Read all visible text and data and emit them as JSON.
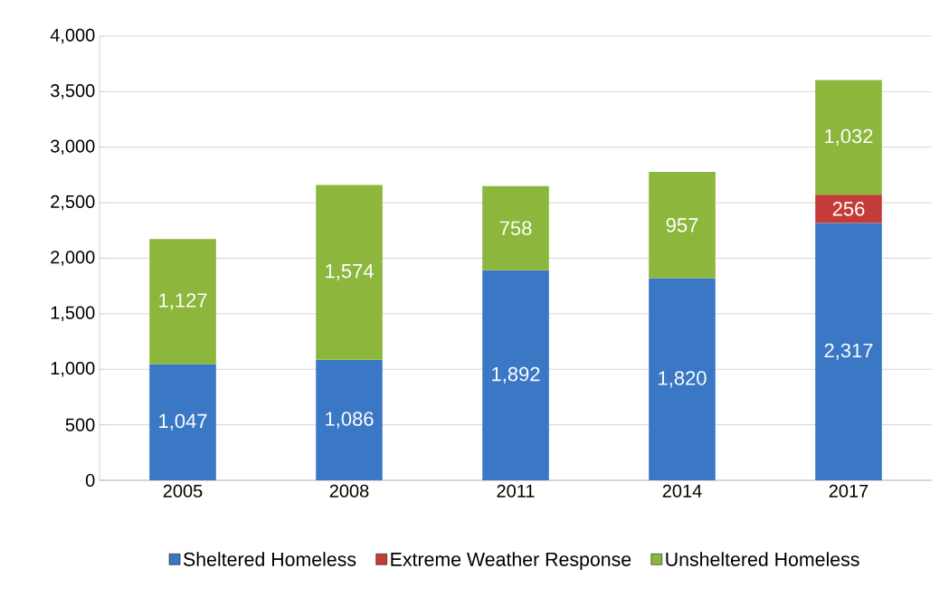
{
  "chart_data": {
    "type": "bar",
    "stacked": true,
    "categories": [
      "2005",
      "2008",
      "2011",
      "2014",
      "2017"
    ],
    "series": [
      {
        "name": "Sheltered Homeless",
        "color": "#3a77c4",
        "values": [
          1047,
          1086,
          1892,
          1820,
          2317
        ],
        "value_labels": [
          "1,047",
          "1,086",
          "1,892",
          "1,820",
          "2,317"
        ]
      },
      {
        "name": "Extreme Weather Response",
        "color": "#c43c38",
        "values": [
          null,
          null,
          null,
          null,
          256
        ],
        "value_labels": [
          null,
          null,
          null,
          null,
          "256"
        ]
      },
      {
        "name": "Unsheltered Homeless",
        "color": "#8cb63c",
        "values": [
          1127,
          1574,
          758,
          957,
          1032
        ],
        "value_labels": [
          "1,127",
          "1,574",
          "758",
          "957",
          "1,032"
        ]
      }
    ],
    "ylim": [
      0,
      4000
    ],
    "yticks": [
      0,
      500,
      {
        "value": 1000,
        "label": "1,000"
      },
      {
        "value": 1500,
        "label": "1,500"
      },
      {
        "value": 2000,
        "label": "2,000"
      },
      {
        "value": 2500,
        "label": "2,500"
      },
      {
        "value": 3000,
        "label": "3,000"
      },
      {
        "value": 3500,
        "label": "3,500"
      },
      {
        "value": 4000,
        "label": "4,000"
      }
    ],
    "grid": "y",
    "legend": "bottom"
  }
}
